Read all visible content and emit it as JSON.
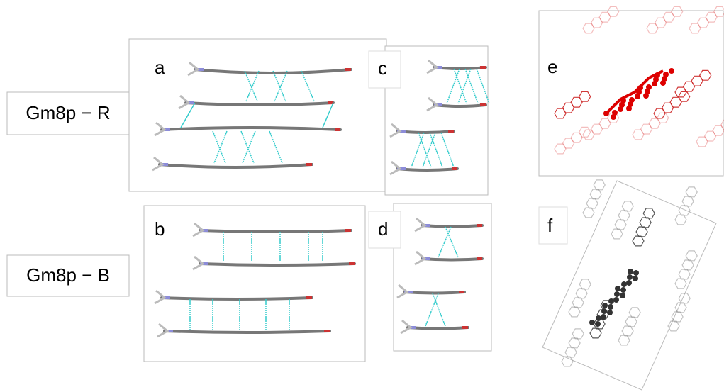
{
  "row_labels": [
    "Gm8p − R",
    "Gm8p − B"
  ],
  "panels": [
    "a",
    "b",
    "c",
    "d",
    "e",
    "f"
  ]
}
